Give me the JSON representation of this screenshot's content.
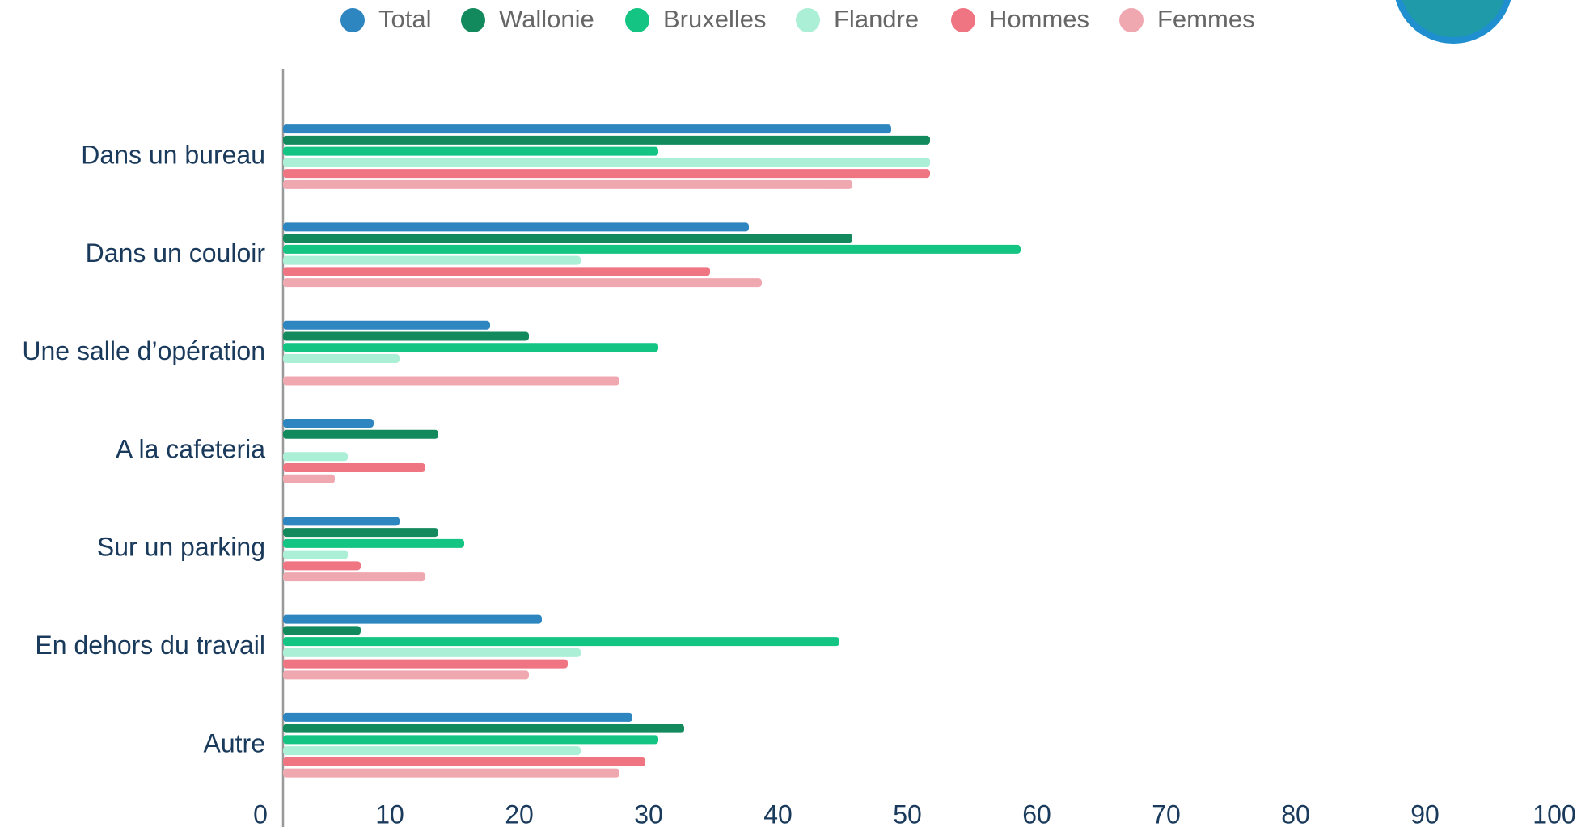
{
  "chart_data": {
    "type": "barh",
    "categories": [
      "Dans un bureau",
      "Dans un couloir",
      "Une salle d’opération",
      "A la cafeteria",
      "Sur un parking",
      "En dehors du travail",
      "Autre"
    ],
    "series": [
      {
        "name": "Total",
        "color": "#2e86c1",
        "values": [
          47,
          36,
          16,
          7,
          9,
          20,
          27
        ]
      },
      {
        "name": "Wallonie",
        "color": "#138a5e",
        "values": [
          50,
          44,
          19,
          12,
          12,
          6,
          31
        ]
      },
      {
        "name": "Bruxelles",
        "color": "#14c483",
        "values": [
          29,
          57,
          29,
          0,
          14,
          43,
          29
        ]
      },
      {
        "name": "Flandre",
        "color": "#abefd6",
        "values": [
          50,
          23,
          9,
          5,
          5,
          23,
          23
        ]
      },
      {
        "name": "Hommes",
        "color": "#ef7583",
        "values": [
          50,
          33,
          0,
          11,
          6,
          22,
          28
        ]
      },
      {
        "name": "Femmes",
        "color": "#f0a8b0",
        "values": [
          44,
          37,
          26,
          4,
          11,
          19,
          26
        ]
      }
    ],
    "xlim": [
      0,
      100
    ],
    "xticks": [
      0,
      10,
      20,
      30,
      40,
      50,
      60,
      70,
      80,
      90,
      100
    ],
    "grid": false,
    "legend": "top"
  }
}
